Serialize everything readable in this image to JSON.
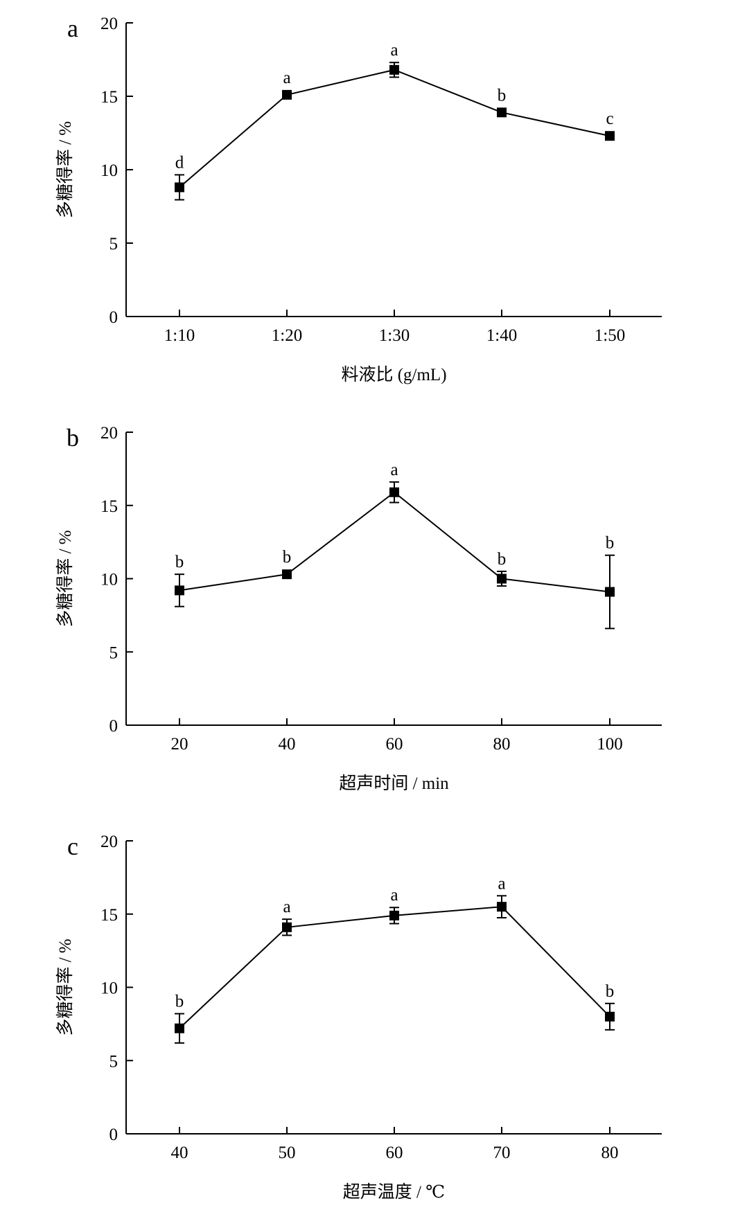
{
  "chart_data": [
    {
      "type": "line",
      "panel_label": "a",
      "xlabel": "料液比 (g/mL)",
      "ylabel": "多糖得率 / %",
      "ylim": [
        0,
        20
      ],
      "yticks": [
        "0",
        "5",
        "10",
        "15",
        "20"
      ],
      "categories": [
        "1:10",
        "1:20",
        "1:30",
        "1:40",
        "1:50"
      ],
      "values": [
        8.8,
        15.1,
        16.8,
        13.9,
        12.3
      ],
      "errors": [
        0.85,
        0.15,
        0.5,
        0.15,
        0.15
      ],
      "significance": [
        "d",
        "a",
        "a",
        "b",
        "c"
      ],
      "grid": false
    },
    {
      "type": "line",
      "panel_label": "b",
      "xlabel": "超声时间 / min",
      "ylabel": "多糖得率 / %",
      "ylim": [
        0,
        20
      ],
      "yticks": [
        "0",
        "5",
        "10",
        "15",
        "20"
      ],
      "categories": [
        "20",
        "40",
        "60",
        "80",
        "100"
      ],
      "values": [
        9.2,
        10.3,
        15.9,
        10.0,
        9.1
      ],
      "errors": [
        1.1,
        0.15,
        0.7,
        0.5,
        2.5
      ],
      "significance": [
        "b",
        "b",
        "a",
        "b",
        "b"
      ],
      "grid": false
    },
    {
      "type": "line",
      "panel_label": "c",
      "xlabel": "超声温度 / ℃",
      "ylabel": "多糖得率 / %",
      "ylim": [
        0,
        20
      ],
      "yticks": [
        "0",
        "5",
        "10",
        "15",
        "20"
      ],
      "categories": [
        "40",
        "50",
        "60",
        "70",
        "80"
      ],
      "values": [
        7.2,
        14.1,
        14.9,
        15.5,
        8.0
      ],
      "errors": [
        1.0,
        0.55,
        0.55,
        0.75,
        0.9
      ],
      "significance": [
        "b",
        "a",
        "a",
        "a",
        "b"
      ],
      "grid": false
    }
  ]
}
